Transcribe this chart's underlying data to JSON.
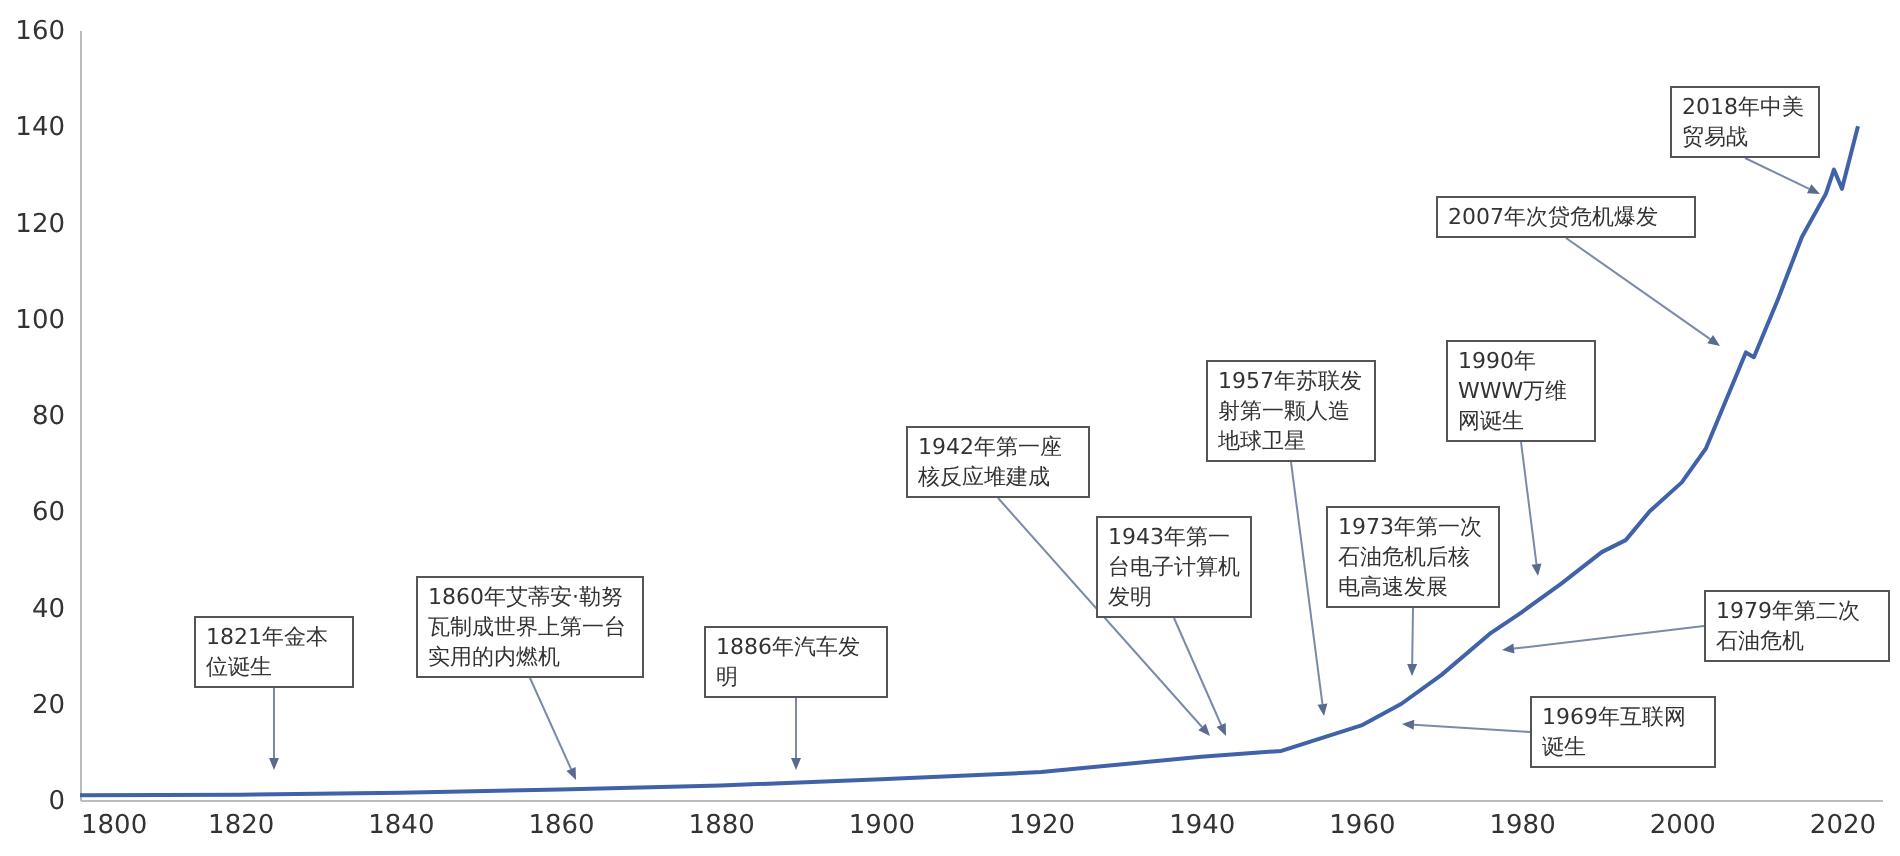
{
  "chart_data": {
    "type": "line",
    "x": [
      1800,
      1820,
      1840,
      1860,
      1880,
      1900,
      1920,
      1940,
      1950,
      1960,
      1965,
      1970,
      1976,
      1980,
      1985,
      1990,
      1993,
      1996,
      2000,
      2003,
      2006,
      2008,
      2009,
      2012,
      2015,
      2018,
      2019,
      2020,
      2022
    ],
    "series": [
      {
        "color": "#3f62a8",
        "values": [
          1,
          1.1,
          1.5,
          2.2,
          3,
          4.3,
          5.8,
          9,
          10.2,
          15.5,
          20,
          26,
          34.5,
          39,
          45,
          51.5,
          54,
          60,
          66,
          73,
          85,
          93,
          92,
          104,
          117,
          126,
          131,
          127,
          140
        ]
      }
    ],
    "xlim": [
      1800,
      2025
    ],
    "ylim": [
      0,
      160
    ],
    "xticks": [
      1800,
      1820,
      1840,
      1860,
      1880,
      1900,
      1920,
      1940,
      1960,
      1980,
      2000,
      2020
    ],
    "yticks": [
      0,
      20,
      40,
      60,
      80,
      100,
      120,
      140,
      160
    ],
    "grid": false,
    "annotations": [
      "1821年金本位诞生",
      "1860年艾蒂安·勒努瓦制成世界上第一台实用的内燃机",
      "1886年汽车发明",
      "1942年第一座核反应堆建成",
      "1943年第一台电子计算机发明",
      "1957年苏联发射第一颗人造地球卫星",
      "1973年第一次石油危机后核电高速发展",
      "1969年互联网诞生",
      "1979年第二次石油危机",
      "1990年WWW万维网诞生",
      "2007年次贷危机爆发",
      "2018年中美贸易战"
    ]
  }
}
